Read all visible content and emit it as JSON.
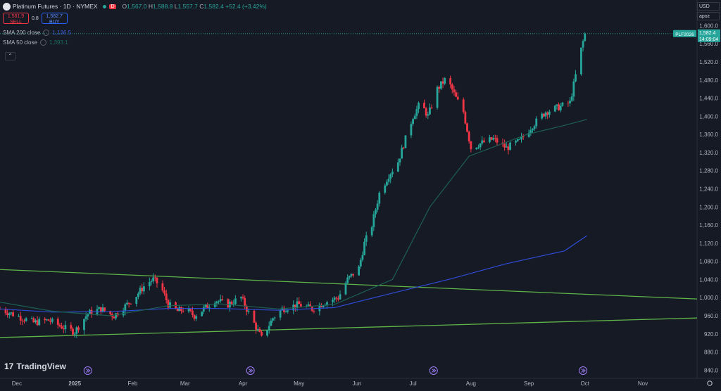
{
  "header": {
    "symbol": "Platinum Futures · 1D · NYMEX",
    "d_badge": "D",
    "ohlc": {
      "o_label": "O",
      "o": "1,567.0",
      "h_label": "H",
      "h": "1,588.8",
      "l_label": "L",
      "l": "1,557.7",
      "c_label": "C",
      "c": "1,582.4",
      "change": "+52.4 (+3.42%)"
    }
  },
  "trade": {
    "sell_price": "1,581.9",
    "sell_label": "SELL",
    "spread": "0.8",
    "buy_price": "1,582.7",
    "buy_label": "BUY"
  },
  "indicators": [
    {
      "name": "SMA 200 close",
      "value": "1,136.5"
    },
    {
      "name": "SMA 50 close",
      "value": "1,393.1"
    }
  ],
  "top_right": {
    "currency": "USD",
    "scale": "apoz"
  },
  "brand": "TradingView",
  "price_tag": {
    "symbol": "PLF2026",
    "price": "1,582.4",
    "countdown": "14:09:04"
  },
  "colors": {
    "up": "#26a69a",
    "down": "#f23645",
    "sma200": "#2e4bd6",
    "sma50": "#1d5f52",
    "trend": "#5fb548",
    "bg": "#161a25",
    "price_line": "#26a69a"
  },
  "chart_data": {
    "type": "candlestick",
    "ylim": [
      825,
      1610
    ],
    "y_ticks": [
      840,
      880,
      920,
      960,
      1000,
      1040,
      1080,
      1120,
      1160,
      1200,
      1240,
      1280,
      1320,
      1360,
      1400,
      1440,
      1480,
      1520,
      1560,
      1600
    ],
    "y_tick_labels": [
      "840.0",
      "880.0",
      "920.0",
      "960.0",
      "1,000.0",
      "1,040.0",
      "1,080.0",
      "1,120.0",
      "1,160.0",
      "1,200.0",
      "1,240.0",
      "1,280.0",
      "1,320.0",
      "1,360.0",
      "1,400.0",
      "1,440.0",
      "1,480.0",
      "1,520.0",
      "1,560.0",
      "1,600.0"
    ],
    "x_labels": [
      "Dec",
      "2025",
      "Feb",
      "Mar",
      "Apr",
      "May",
      "Jun",
      "Jul",
      "Aug",
      "Sep",
      "Oct",
      "Nov"
    ],
    "x_label_dates": [
      "2024-12-01",
      "2025-01-01",
      "2025-02-01",
      "2025-03-01",
      "2025-04-01",
      "2025-05-01",
      "2025-06-01",
      "2025-07-01",
      "2025-08-01",
      "2025-09-01",
      "2025-10-01",
      "2025-11-01"
    ],
    "x_start": "2024-11-22",
    "x_end": "2025-11-30",
    "last_price": 1582.4,
    "price_path": [
      [
        "2024-11-22",
        975
      ],
      [
        "2024-12-01",
        960
      ],
      [
        "2024-12-10",
        945
      ],
      [
        "2024-12-18",
        950
      ],
      [
        "2024-12-28",
        930
      ],
      [
        "2025-01-01",
        925
      ],
      [
        "2025-01-08",
        965
      ],
      [
        "2025-01-15",
        975
      ],
      [
        "2025-01-22",
        960
      ],
      [
        "2025-01-29",
        985
      ],
      [
        "2025-02-03",
        1005
      ],
      [
        "2025-02-08",
        1030
      ],
      [
        "2025-02-12",
        1040
      ],
      [
        "2025-02-16",
        1025
      ],
      [
        "2025-02-20",
        985
      ],
      [
        "2025-02-25",
        970
      ],
      [
        "2025-03-01",
        975
      ],
      [
        "2025-03-06",
        960
      ],
      [
        "2025-03-11",
        975
      ],
      [
        "2025-03-17",
        995
      ],
      [
        "2025-03-24",
        985
      ],
      [
        "2025-03-31",
        1000
      ],
      [
        "2025-04-03",
        975
      ],
      [
        "2025-04-08",
        935
      ],
      [
        "2025-04-11",
        910
      ],
      [
        "2025-04-17",
        955
      ],
      [
        "2025-04-22",
        975
      ],
      [
        "2025-05-01",
        985
      ],
      [
        "2025-05-08",
        975
      ],
      [
        "2025-05-15",
        990
      ],
      [
        "2025-05-22",
        1000
      ],
      [
        "2025-05-27",
        1040
      ],
      [
        "2025-06-02",
        1065
      ],
      [
        "2025-06-05",
        1120
      ],
      [
        "2025-06-09",
        1160
      ],
      [
        "2025-06-13",
        1230
      ],
      [
        "2025-06-18",
        1270
      ],
      [
        "2025-06-23",
        1300
      ],
      [
        "2025-06-27",
        1350
      ],
      [
        "2025-07-01",
        1400
      ],
      [
        "2025-07-05",
        1430
      ],
      [
        "2025-07-09",
        1400
      ],
      [
        "2025-07-14",
        1460
      ],
      [
        "2025-07-19",
        1485
      ],
      [
        "2025-07-24",
        1440
      ],
      [
        "2025-07-28",
        1410
      ],
      [
        "2025-08-01",
        1330
      ],
      [
        "2025-08-06",
        1340
      ],
      [
        "2025-08-13",
        1350
      ],
      [
        "2025-08-20",
        1330
      ],
      [
        "2025-08-27",
        1345
      ],
      [
        "2025-09-03",
        1380
      ],
      [
        "2025-09-10",
        1410
      ],
      [
        "2025-09-17",
        1420
      ],
      [
        "2025-09-23",
        1430
      ],
      [
        "2025-09-28",
        1530
      ],
      [
        "2025-10-01",
        1582.4
      ]
    ],
    "sma200": [
      [
        "2024-11-22",
        975
      ],
      [
        "2024-12-20",
        968
      ],
      [
        "2025-01-20",
        969
      ],
      [
        "2025-02-20",
        976
      ],
      [
        "2025-03-20",
        976
      ],
      [
        "2025-04-20",
        972
      ],
      [
        "2025-05-20",
        978
      ],
      [
        "2025-06-20",
        1010
      ],
      [
        "2025-07-20",
        1040
      ],
      [
        "2025-08-20",
        1075
      ],
      [
        "2025-09-20",
        1103
      ],
      [
        "2025-10-02",
        1136.5
      ]
    ],
    "sma50": [
      [
        "2024-11-22",
        990
      ],
      [
        "2024-12-20",
        970
      ],
      [
        "2025-01-20",
        960
      ],
      [
        "2025-02-20",
        982
      ],
      [
        "2025-03-20",
        986
      ],
      [
        "2025-04-20",
        975
      ],
      [
        "2025-05-20",
        985
      ],
      [
        "2025-06-20",
        1040
      ],
      [
        "2025-07-10",
        1200
      ],
      [
        "2025-07-31",
        1312
      ],
      [
        "2025-08-31",
        1360
      ],
      [
        "2025-09-20",
        1380
      ],
      [
        "2025-10-02",
        1393.1
      ]
    ],
    "trendlines": [
      [
        [
          "2024-11-22",
          1062
        ],
        [
          "2025-11-30",
          997
        ]
      ],
      [
        [
          "2024-11-22",
          912
        ],
        [
          "2025-11-30",
          955
        ]
      ]
    ]
  }
}
